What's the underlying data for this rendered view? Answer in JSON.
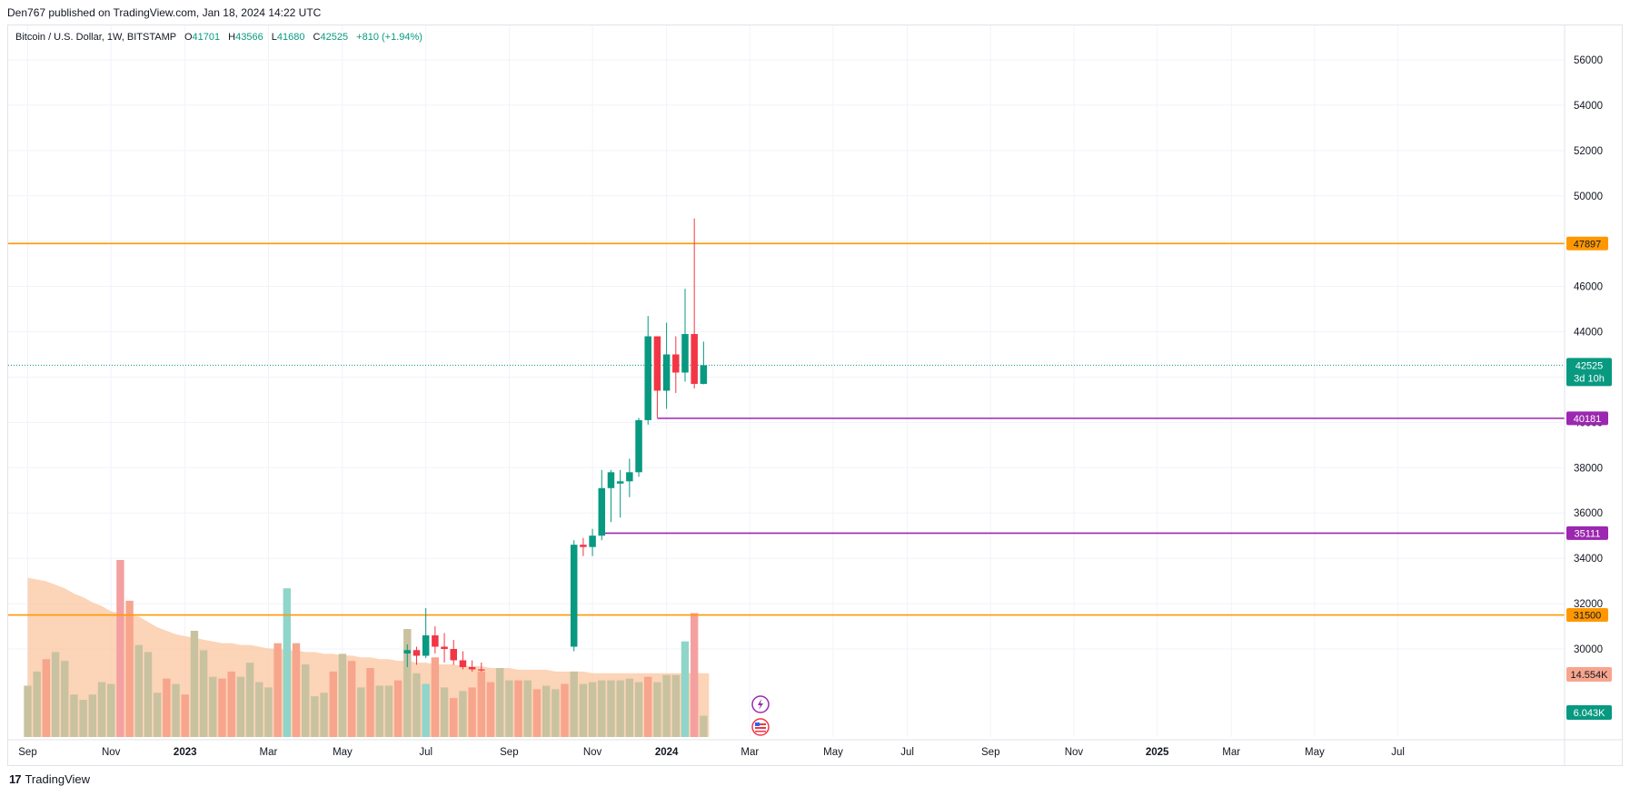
{
  "publish_info": "Den767 published on TradingView.com, Jan 18, 2024 14:22 UTC",
  "legend": {
    "symbol": "Bitcoin / U.S. Dollar, 1W, BITSTAMP",
    "open_label": "O",
    "open": "41701",
    "high_label": "H",
    "high": "43566",
    "low_label": "L",
    "low": "41680",
    "close_label": "C",
    "close": "42525",
    "change": "+810 (+1.94%)"
  },
  "footer": {
    "logo_mark": "17",
    "logo_text": "TradingView"
  },
  "colors": {
    "up": "#089981",
    "down": "#f23645",
    "orange": "#ff9800",
    "purple": "#9c27b0",
    "vol_up": "#c8c2a0",
    "vol_down": "#f7a58d",
    "vol_ma": "#fbc9a5"
  },
  "chart_data": {
    "type": "candlestick",
    "symbol": "Bitcoin / U.S. Dollar",
    "interval": "1W",
    "exchange": "BITSTAMP",
    "ylim": [
      29000,
      57000
    ],
    "y_ticks": [
      30000,
      32000,
      34000,
      36000,
      38000,
      40000,
      42000,
      44000,
      46000,
      48000,
      50000,
      52000,
      54000,
      56000
    ],
    "y_tick_labels": [
      "30000",
      "32000",
      "34000",
      "36000",
      "38000",
      "40000",
      "42000",
      "44000",
      "46000",
      "48000",
      "50000",
      "52000",
      "54000",
      "56000"
    ],
    "x_ticks": [
      "Sep",
      "Nov",
      "2023",
      "Mar",
      "May",
      "Jul",
      "Sep",
      "Nov",
      "2024",
      "Mar",
      "May",
      "Jul",
      "Sep",
      "Nov",
      "2025",
      "Mar",
      "May",
      "Jul"
    ],
    "x_tick_weeks": [
      0,
      9,
      17,
      26,
      34,
      43,
      52,
      61,
      69,
      78,
      87,
      95,
      104,
      113,
      122,
      130,
      139,
      148
    ],
    "bold_ticks": [
      "2023",
      "2024",
      "2025"
    ],
    "candles": [
      {
        "week": 41,
        "o": 29800,
        "h": 30200,
        "l": 29200,
        "c": 29950
      },
      {
        "week": 42,
        "o": 29950,
        "h": 30100,
        "l": 29300,
        "c": 29700
      },
      {
        "week": 43,
        "o": 29700,
        "h": 31800,
        "l": 29600,
        "c": 30600
      },
      {
        "week": 44,
        "o": 30600,
        "h": 31000,
        "l": 29800,
        "c": 30100
      },
      {
        "week": 45,
        "o": 30100,
        "h": 30700,
        "l": 29400,
        "c": 30000
      },
      {
        "week": 46,
        "o": 30000,
        "h": 30400,
        "l": 29300,
        "c": 29500
      },
      {
        "week": 47,
        "o": 29500,
        "h": 29900,
        "l": 29100,
        "c": 29200
      },
      {
        "week": 48,
        "o": 29200,
        "h": 29500,
        "l": 29000,
        "c": 29100
      },
      {
        "week": 49,
        "o": 29100,
        "h": 29400,
        "l": 29000,
        "c": 29050
      },
      {
        "week": 59,
        "o": 30100,
        "h": 34800,
        "l": 29900,
        "c": 34600
      },
      {
        "week": 60,
        "o": 34600,
        "h": 34900,
        "l": 34100,
        "c": 34500
      },
      {
        "week": 61,
        "o": 34500,
        "h": 35300,
        "l": 34100,
        "c": 35000
      },
      {
        "week": 62,
        "o": 35000,
        "h": 37900,
        "l": 34800,
        "c": 37100
      },
      {
        "week": 63,
        "o": 37100,
        "h": 37900,
        "l": 35600,
        "c": 37800
      },
      {
        "week": 64,
        "o": 37300,
        "h": 37900,
        "l": 35800,
        "c": 37400
      },
      {
        "week": 65,
        "o": 37400,
        "h": 38400,
        "l": 36700,
        "c": 37800
      },
      {
        "week": 66,
        "o": 37800,
        "h": 40200,
        "l": 37600,
        "c": 40100
      },
      {
        "week": 67,
        "o": 40100,
        "h": 44700,
        "l": 39900,
        "c": 43800
      },
      {
        "week": 68,
        "o": 43800,
        "h": 43800,
        "l": 40200,
        "c": 41400
      },
      {
        "week": 69,
        "o": 41400,
        "h": 44400,
        "l": 40600,
        "c": 43000
      },
      {
        "week": 70,
        "o": 43000,
        "h": 43800,
        "l": 41300,
        "c": 42200
      },
      {
        "week": 71,
        "o": 42200,
        "h": 45900,
        "l": 41800,
        "c": 43900
      },
      {
        "week": 72,
        "o": 43900,
        "h": 49000,
        "l": 41500,
        "c": 41700
      },
      {
        "week": 73,
        "o": 41700,
        "h": 43566,
        "l": 41680,
        "c": 42525
      }
    ],
    "volume": [
      {
        "week": 0,
        "up": true,
        "h": 0.29
      },
      {
        "week": 1,
        "up": true,
        "h": 0.37
      },
      {
        "week": 2,
        "up": false,
        "h": 0.44
      },
      {
        "week": 3,
        "up": true,
        "h": 0.48
      },
      {
        "week": 4,
        "up": true,
        "h": 0.43
      },
      {
        "week": 5,
        "up": true,
        "h": 0.24
      },
      {
        "week": 6,
        "up": true,
        "h": 0.21
      },
      {
        "week": 7,
        "up": true,
        "h": 0.24
      },
      {
        "week": 8,
        "up": true,
        "h": 0.31
      },
      {
        "week": 9,
        "up": true,
        "h": 0.3
      },
      {
        "week": 10,
        "up": false,
        "h": 1.0
      },
      {
        "week": 11,
        "up": false,
        "h": 0.77
      },
      {
        "week": 12,
        "up": true,
        "h": 0.52
      },
      {
        "week": 13,
        "up": true,
        "h": 0.48
      },
      {
        "week": 14,
        "up": true,
        "h": 0.25
      },
      {
        "week": 15,
        "up": false,
        "h": 0.33
      },
      {
        "week": 16,
        "up": true,
        "h": 0.3
      },
      {
        "week": 17,
        "up": false,
        "h": 0.24
      },
      {
        "week": 18,
        "up": true,
        "h": 0.6
      },
      {
        "week": 19,
        "up": true,
        "h": 0.49
      },
      {
        "week": 20,
        "up": true,
        "h": 0.34
      },
      {
        "week": 21,
        "up": false,
        "h": 0.33
      },
      {
        "week": 22,
        "up": false,
        "h": 0.37
      },
      {
        "week": 23,
        "up": true,
        "h": 0.34
      },
      {
        "week": 24,
        "up": true,
        "h": 0.42
      },
      {
        "week": 25,
        "up": true,
        "h": 0.31
      },
      {
        "week": 26,
        "up": true,
        "h": 0.28
      },
      {
        "week": 27,
        "up": false,
        "h": 0.53
      },
      {
        "week": 28,
        "up": true,
        "h": 0.84
      },
      {
        "week": 29,
        "up": false,
        "h": 0.53
      },
      {
        "week": 30,
        "up": true,
        "h": 0.41
      },
      {
        "week": 31,
        "up": true,
        "h": 0.23
      },
      {
        "week": 32,
        "up": true,
        "h": 0.25
      },
      {
        "week": 33,
        "up": false,
        "h": 0.37
      },
      {
        "week": 34,
        "up": true,
        "h": 0.47
      },
      {
        "week": 35,
        "up": false,
        "h": 0.43
      },
      {
        "week": 36,
        "up": true,
        "h": 0.28
      },
      {
        "week": 37,
        "up": false,
        "h": 0.39
      },
      {
        "week": 38,
        "up": true,
        "h": 0.29
      },
      {
        "week": 39,
        "up": true,
        "h": 0.29
      },
      {
        "week": 40,
        "up": false,
        "h": 0.32
      },
      {
        "week": 41,
        "up": true,
        "h": 0.61
      },
      {
        "week": 42,
        "up": true,
        "h": 0.36
      },
      {
        "week": 43,
        "up": false,
        "h": 0.3
      },
      {
        "week": 44,
        "up": false,
        "h": 0.45
      },
      {
        "week": 45,
        "up": true,
        "h": 0.28
      },
      {
        "week": 46,
        "up": false,
        "h": 0.22
      },
      {
        "week": 47,
        "up": true,
        "h": 0.26
      },
      {
        "week": 48,
        "up": false,
        "h": 0.28
      },
      {
        "week": 49,
        "up": false,
        "h": 0.37
      },
      {
        "week": 50,
        "up": false,
        "h": 0.31
      },
      {
        "week": 51,
        "up": true,
        "h": 0.39
      },
      {
        "week": 52,
        "up": true,
        "h": 0.32
      },
      {
        "week": 53,
        "up": false,
        "h": 0.32
      },
      {
        "week": 54,
        "up": true,
        "h": 0.32
      },
      {
        "week": 55,
        "up": false,
        "h": 0.27
      },
      {
        "week": 56,
        "up": true,
        "h": 0.29
      },
      {
        "week": 57,
        "up": true,
        "h": 0.27
      },
      {
        "week": 58,
        "up": false,
        "h": 0.3
      },
      {
        "week": 59,
        "up": true,
        "h": 0.37
      },
      {
        "week": 60,
        "up": true,
        "h": 0.3
      },
      {
        "week": 61,
        "up": true,
        "h": 0.31
      },
      {
        "week": 62,
        "up": true,
        "h": 0.32
      },
      {
        "week": 63,
        "up": true,
        "h": 0.32
      },
      {
        "week": 64,
        "up": true,
        "h": 0.32
      },
      {
        "week": 65,
        "up": true,
        "h": 0.33
      },
      {
        "week": 66,
        "up": true,
        "h": 0.31
      },
      {
        "week": 67,
        "up": false,
        "h": 0.34
      },
      {
        "week": 68,
        "up": true,
        "h": 0.31
      },
      {
        "week": 69,
        "up": true,
        "h": 0.35
      },
      {
        "week": 70,
        "up": true,
        "h": 0.35
      },
      {
        "week": 71,
        "up": true,
        "h": 0.54
      },
      {
        "week": 72,
        "up": false,
        "h": 0.7
      },
      {
        "week": 73,
        "up": true,
        "h": 0.12
      }
    ],
    "volume_ma": [
      0.9,
      0.89,
      0.88,
      0.86,
      0.84,
      0.81,
      0.79,
      0.76,
      0.74,
      0.71,
      0.7,
      0.69,
      0.68,
      0.65,
      0.62,
      0.6,
      0.58,
      0.57,
      0.56,
      0.55,
      0.54,
      0.53,
      0.53,
      0.52,
      0.52,
      0.51,
      0.5,
      0.5,
      0.49,
      0.49,
      0.48,
      0.48,
      0.47,
      0.47,
      0.46,
      0.46,
      0.45,
      0.45,
      0.44,
      0.44,
      0.43,
      0.43,
      0.42,
      0.42,
      0.41,
      0.41,
      0.41,
      0.4,
      0.4,
      0.4,
      0.39,
      0.39,
      0.39,
      0.38,
      0.38,
      0.38,
      0.38,
      0.37,
      0.37,
      0.37,
      0.37,
      0.36,
      0.36,
      0.36,
      0.36,
      0.36,
      0.36,
      0.36,
      0.36,
      0.36,
      0.36,
      0.36,
      0.36,
      0.36
    ],
    "horizontal_lines": [
      {
        "price": 47897,
        "label": "47897",
        "color": "#ff9800",
        "from_week": null
      },
      {
        "price": 40181,
        "label": "40181",
        "color": "#9c27b0",
        "from_week": 68
      },
      {
        "price": 35111,
        "label": "35111",
        "color": "#9c27b0",
        "from_week": 62
      },
      {
        "price": 31500,
        "label": "31500",
        "color": "#ff9800",
        "from_week": null
      }
    ],
    "last_price": {
      "price": 42525,
      "label": "42525",
      "countdown": "3d 10h"
    },
    "volume_labels": [
      {
        "label": "14.554K",
        "color": "#f7a58d",
        "text_color": "#131722"
      },
      {
        "label": "6.043K",
        "color": "#089981",
        "text_color": "#ffffff"
      }
    ]
  }
}
